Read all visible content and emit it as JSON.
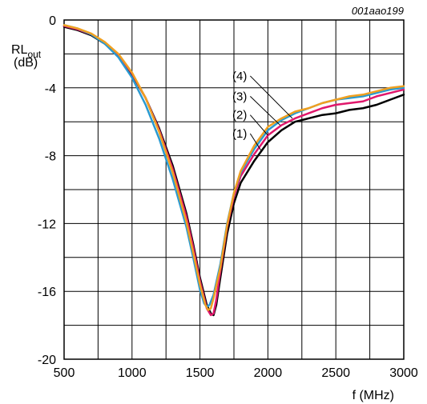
{
  "chart_data": {
    "type": "line",
    "figure_code": "001aao199",
    "xlabel": "f (MHz)",
    "ylabel_main": "RL",
    "ylabel_sub": "out",
    "ylabel_unit": "(dB)",
    "xlim": [
      500,
      3000
    ],
    "ylim": [
      -20,
      0
    ],
    "x_ticks": [
      500,
      1000,
      1500,
      2000,
      2500,
      3000
    ],
    "y_ticks": [
      0,
      -4,
      -8,
      -12,
      -16,
      -20
    ],
    "x_tick_labels": [
      "500",
      "1000",
      "1500",
      "2000",
      "2500",
      "3000"
    ],
    "y_tick_labels": [
      "0",
      "-4",
      "-8",
      "-12",
      "-16",
      "-20"
    ],
    "grid": true,
    "series": [
      {
        "name": "(1)",
        "color": "#000000",
        "x": [
          500,
          600,
          700,
          800,
          900,
          1000,
          1100,
          1200,
          1300,
          1400,
          1450,
          1500,
          1550,
          1580,
          1600,
          1620,
          1650,
          1700,
          1750,
          1800,
          1900,
          2000,
          2100,
          2200,
          2300,
          2400,
          2500,
          2600,
          2700,
          2800,
          2900,
          3000
        ],
        "y": [
          -0.4,
          -0.6,
          -0.9,
          -1.4,
          -2.1,
          -3.2,
          -4.6,
          -6.4,
          -8.6,
          -11.4,
          -13.2,
          -15.2,
          -16.8,
          -17.3,
          -17.4,
          -16.8,
          -15.2,
          -12.6,
          -10.8,
          -9.6,
          -8.3,
          -7.2,
          -6.5,
          -6.0,
          -5.8,
          -5.6,
          -5.5,
          -5.3,
          -5.2,
          -5.0,
          -4.7,
          -4.4
        ]
      },
      {
        "name": "(2)",
        "color": "#e0186c",
        "x": [
          500,
          600,
          700,
          800,
          900,
          1000,
          1100,
          1200,
          1300,
          1400,
          1450,
          1500,
          1550,
          1580,
          1600,
          1620,
          1650,
          1700,
          1750,
          1800,
          1900,
          2000,
          2100,
          2200,
          2300,
          2400,
          2500,
          2600,
          2700,
          2800,
          2900,
          3000
        ],
        "y": [
          -0.35,
          -0.55,
          -0.85,
          -1.35,
          -2.05,
          -3.15,
          -4.6,
          -6.5,
          -8.8,
          -11.6,
          -13.4,
          -15.4,
          -17.0,
          -17.4,
          -17.3,
          -16.5,
          -14.8,
          -12.2,
          -10.4,
          -9.2,
          -7.9,
          -6.8,
          -6.2,
          -5.8,
          -5.5,
          -5.2,
          -5.0,
          -4.9,
          -4.8,
          -4.5,
          -4.3,
          -4.1
        ]
      },
      {
        "name": "(3)",
        "color": "#2a9ad0",
        "x": [
          500,
          600,
          700,
          800,
          900,
          1000,
          1100,
          1200,
          1300,
          1400,
          1450,
          1500,
          1530,
          1550,
          1570,
          1600,
          1650,
          1700,
          1750,
          1800,
          1900,
          2000,
          2100,
          2200,
          2300,
          2400,
          2500,
          2600,
          2700,
          2800,
          2900,
          3000
        ],
        "y": [
          -0.3,
          -0.5,
          -0.85,
          -1.4,
          -2.2,
          -3.4,
          -5.0,
          -7.0,
          -9.4,
          -12.2,
          -14.0,
          -15.9,
          -16.7,
          -16.9,
          -16.8,
          -16.2,
          -14.4,
          -12.0,
          -10.2,
          -9.0,
          -7.6,
          -6.5,
          -5.9,
          -5.5,
          -5.2,
          -4.9,
          -4.7,
          -4.6,
          -4.5,
          -4.3,
          -4.1,
          -4.0
        ]
      },
      {
        "name": "(4)",
        "color": "#f0a020",
        "x": [
          500,
          600,
          700,
          800,
          900,
          1000,
          1100,
          1200,
          1300,
          1400,
          1450,
          1500,
          1540,
          1560,
          1580,
          1600,
          1650,
          1700,
          1750,
          1800,
          1900,
          2000,
          2100,
          2200,
          2300,
          2400,
          2500,
          2600,
          2700,
          2800,
          2900,
          3000
        ],
        "y": [
          -0.3,
          -0.5,
          -0.8,
          -1.3,
          -2.0,
          -3.1,
          -4.6,
          -6.6,
          -9.0,
          -11.9,
          -13.7,
          -15.6,
          -16.8,
          -17.1,
          -17.0,
          -16.4,
          -14.6,
          -12.1,
          -10.2,
          -8.9,
          -7.4,
          -6.3,
          -5.8,
          -5.4,
          -5.2,
          -4.9,
          -4.7,
          -4.5,
          -4.4,
          -4.2,
          -4.0,
          -3.9
        ]
      }
    ],
    "annotations": [
      {
        "label": "(4)",
        "series": "(4)",
        "text_at": [
          1870,
          -3.3
        ],
        "point_at": [
          2180,
          -5.8
        ]
      },
      {
        "label": "(3)",
        "series": "(3)",
        "text_at": [
          1870,
          -4.5
        ],
        "point_at": [
          2090,
          -6.2
        ]
      },
      {
        "label": "(2)",
        "series": "(2)",
        "text_at": [
          1870,
          -5.6
        ],
        "point_at": [
          2000,
          -6.8
        ]
      },
      {
        "label": "(1)",
        "series": "(1)",
        "text_at": [
          1870,
          -6.7
        ],
        "point_at": [
          1950,
          -7.7
        ]
      }
    ]
  }
}
